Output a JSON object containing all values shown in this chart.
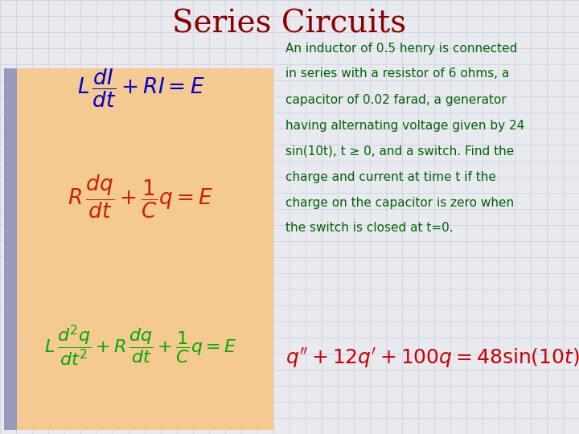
{
  "title": "Series Circuits",
  "title_color": "#8B0000",
  "title_fontsize": 28,
  "bg_color": "#E8EAF0",
  "panel_bg": "#F5C992",
  "grid_color": "#C8CCE0",
  "eq1_color": "#0000CC",
  "eq2_color": "#CC2200",
  "eq3_color": "#00AA00",
  "eq4_color": "#CC0000",
  "text_color": "#006400",
  "sidebar_color": "#9999BB",
  "description_lines": [
    "An inductor of 0.5 henry is connected",
    "in series with a resistor of 6 ohms, a",
    "capacitor of 0.02 farad, a generator",
    "having alternating voltage given by 24",
    "sin(10t), t ≥ 0, and a switch. Find the",
    "charge and current at time t if the",
    "charge on the capacitor is zero when",
    "the switch is closed at t=0."
  ]
}
